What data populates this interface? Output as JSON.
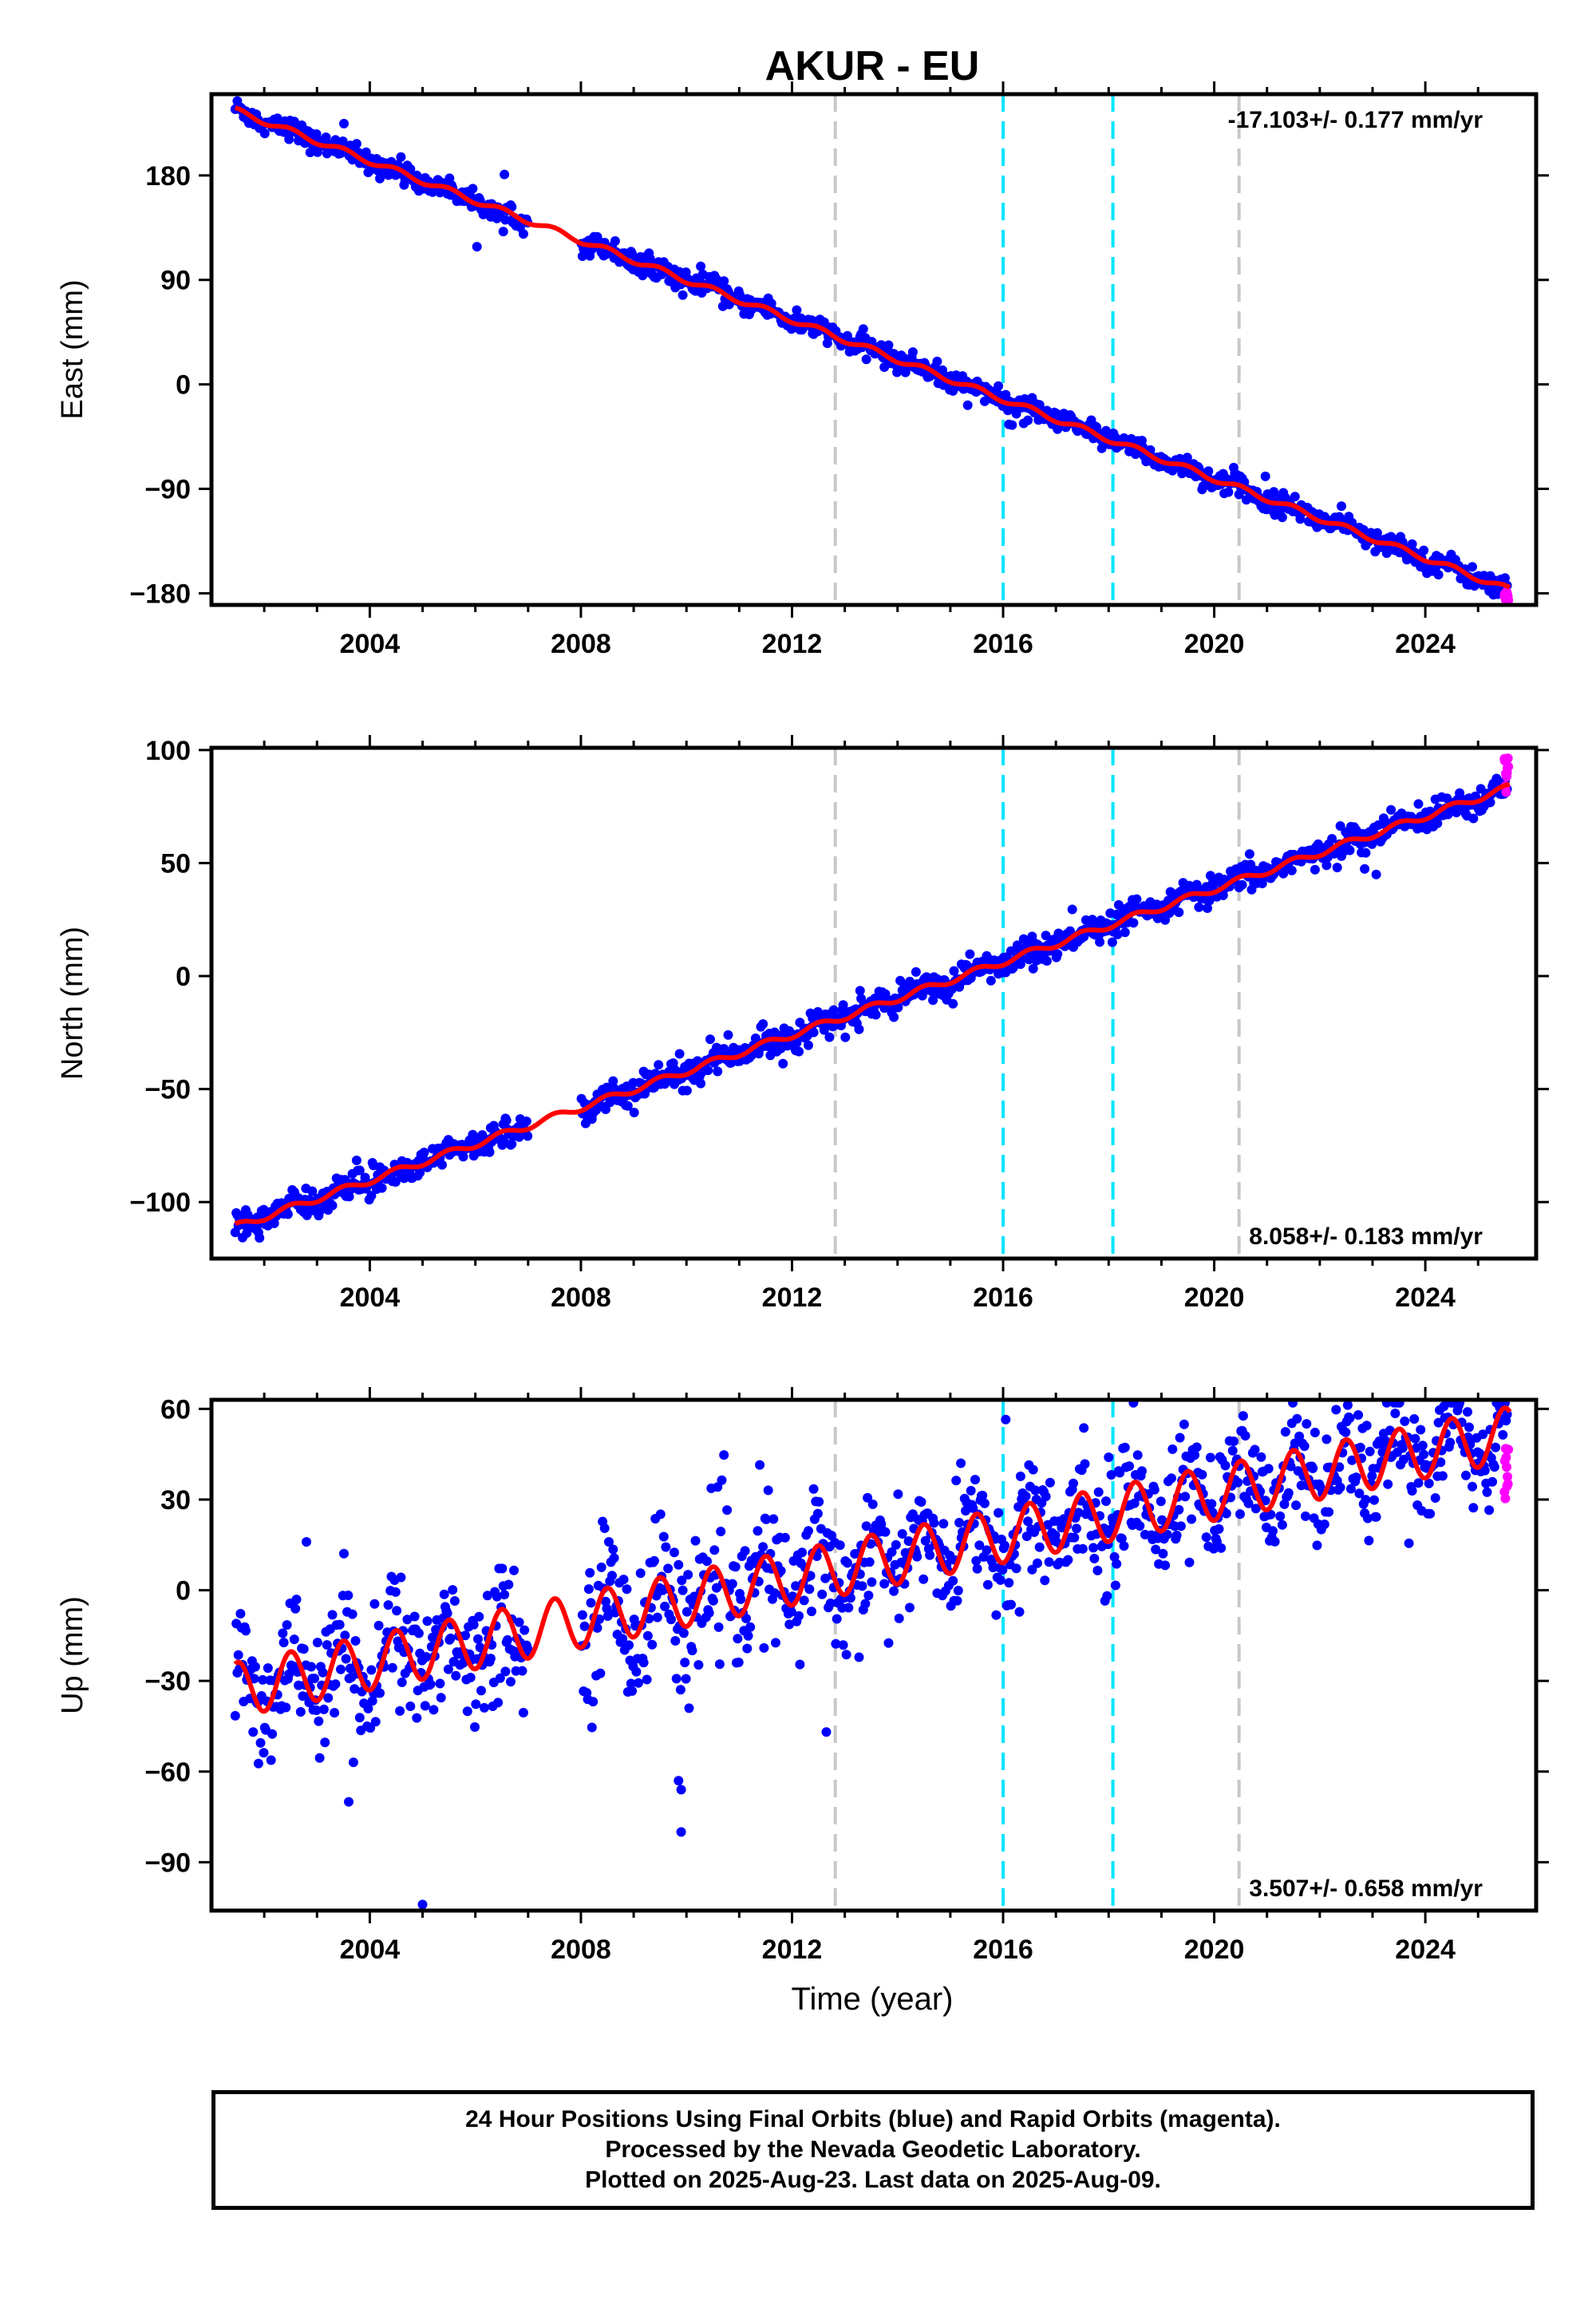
{
  "chart_data": {
    "title": "AKUR - EU",
    "xlabel": "Time (year)",
    "x_ticks": [
      2004,
      2008,
      2012,
      2016,
      2020,
      2024
    ],
    "xlim": [
      2001.0,
      2026.1
    ],
    "start": 2001.45,
    "end": 2025.6,
    "gap": [
      2007.0,
      2008.0
    ],
    "colors": {
      "final": "#0000ff",
      "rapid": "#ff00ff",
      "model": "#ff0000",
      "equip_change": "#c8c8c8",
      "eq_event": "#00e5ff"
    },
    "equipment_changes": [
      2012.82,
      2020.47
    ],
    "earthquake_events": [
      2016.0,
      2018.08
    ],
    "panels": [
      {
        "type": "scatter",
        "ylabel": "East (mm)",
        "ylim": [
          -190,
          250
        ],
        "y_ticks": [
          180,
          90,
          0,
          -90,
          -180
        ],
        "y_tick_labels": [
          "180",
          "90",
          "0",
          "−90",
          "−180"
        ],
        "rate_label": "-17.103+/- 0.177 mm/yr",
        "rate_position": "top-right",
        "velocity": -17.103,
        "model_start_value": 236,
        "seasonal_amplitude": 2.5,
        "noise": 4.5,
        "rapid_range": [
          -187,
          -178
        ]
      },
      {
        "type": "scatter",
        "ylabel": "North (mm)",
        "ylim": [
          -125,
          101
        ],
        "y_ticks": [
          100,
          50,
          0,
          -50,
          -100
        ],
        "y_tick_labels": [
          "100",
          "50",
          "0",
          "−50",
          "−100"
        ],
        "rate_label": "8.058+/- 0.183 mm/yr",
        "rate_position": "bottom-right",
        "velocity": 8.058,
        "model_start_value": -111,
        "seasonal_amplitude": 1.5,
        "noise": 3.0,
        "rapid_range": [
          80,
          98
        ]
      },
      {
        "type": "scatter",
        "ylabel": "Up (mm)",
        "ylim": [
          -106,
          63
        ],
        "y_ticks": [
          60,
          30,
          0,
          -30,
          -60,
          -90
        ],
        "y_tick_labels": [
          "60",
          "30",
          "0",
          "−30",
          "−60",
          "−90"
        ],
        "rate_label": "3.507+/- 0.658 mm/yr",
        "rate_position": "bottom-right",
        "velocity": 3.507,
        "model_start_value": -33,
        "seasonal_amplitude": 9,
        "noise": 9,
        "rapid_range": [
          30,
          48
        ],
        "outliers": [
          [
            2005.0,
            -104
          ],
          [
            2009.9,
            -80
          ],
          [
            2009.85,
            -63
          ],
          [
            2009.9,
            -66
          ],
          [
            2003.6,
            -70
          ],
          [
            2002.8,
            16
          ],
          [
            2015.2,
            42
          ],
          [
            2018.0,
            44
          ],
          [
            2024.8,
            59
          ]
        ]
      }
    ]
  },
  "footer": {
    "line1": "24 Hour Positions Using Final Orbits (blue) and Rapid Orbits (magenta).",
    "line2": "Processed by the Nevada Geodetic Laboratory.",
    "line3": "Plotted on 2025-Aug-23. Last data on 2025-Aug-09."
  }
}
